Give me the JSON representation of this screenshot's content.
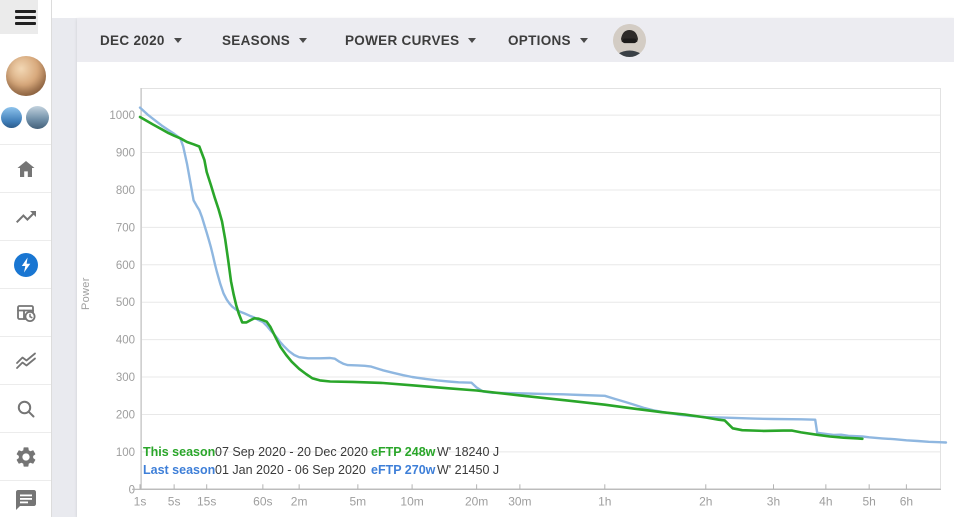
{
  "colors": {
    "this_season_green": "#2aa62a",
    "last_season_line_blue": "#8fb7e0",
    "last_season_text_blue": "#3e7fd8",
    "flash_accent_blue": "#1976d2",
    "toolbar_bg": "#ececf1",
    "axis_text_gray": "#9e9e9e"
  },
  "sidebar": {
    "icons": [
      "hamburger-menu",
      "home",
      "trending-up",
      "power-flash-active",
      "year-progress-table-clock",
      "multi-lines-chart",
      "search",
      "settings",
      "feedback-chat"
    ]
  },
  "toolbar": {
    "menus": [
      {
        "label": "DEC 2020"
      },
      {
        "label": "SEASONS"
      },
      {
        "label": "POWER CURVES"
      },
      {
        "label": "OPTIONS"
      }
    ]
  },
  "legend": {
    "rows": [
      {
        "label": "This season",
        "dates": "07 Sep 2020 - 20 Dec 2020",
        "eftp": "eFTP 248w",
        "wprime": "W' 18240 J",
        "color": "#2aa62a"
      },
      {
        "label": "Last season",
        "dates": "01 Jan 2020 - 06 Sep 2020",
        "eftp": "eFTP 270w",
        "wprime": "W' 21450 J",
        "color": "#3e7fd8"
      }
    ]
  },
  "chart_data": {
    "type": "line",
    "title": "",
    "xlabel": "",
    "ylabel": "Power",
    "x_scale": "fourth-root-of-seconds",
    "ylim": [
      0,
      1050
    ],
    "grid": "horizontal",
    "legend_position": "bottom-left",
    "y_ticks": [
      0,
      100,
      200,
      300,
      400,
      500,
      600,
      700,
      800,
      900,
      1000
    ],
    "x_ticks": [
      {
        "t": 1,
        "label": "1s"
      },
      {
        "t": 5,
        "label": "5s"
      },
      {
        "t": 15,
        "label": "15s"
      },
      {
        "t": 60,
        "label": "60s"
      },
      {
        "t": 120,
        "label": "2m"
      },
      {
        "t": 300,
        "label": "5m"
      },
      {
        "t": 600,
        "label": "10m"
      },
      {
        "t": 1200,
        "label": "20m"
      },
      {
        "t": 1800,
        "label": "30m"
      },
      {
        "t": 3600,
        "label": "1h"
      },
      {
        "t": 7200,
        "label": "2h"
      },
      {
        "t": 10800,
        "label": "3h"
      },
      {
        "t": 14400,
        "label": "4h"
      },
      {
        "t": 18000,
        "label": "5h"
      },
      {
        "t": 21600,
        "label": "6h"
      }
    ],
    "series": [
      {
        "name": "Last season",
        "color": "#8fb7e0",
        "width": 2.4,
        "points": [
          [
            1,
            1020
          ],
          [
            1.5,
            1002
          ],
          [
            2,
            990
          ],
          [
            3,
            972
          ],
          [
            4,
            960
          ],
          [
            5,
            950
          ],
          [
            6.3,
            938
          ],
          [
            7,
            916
          ],
          [
            8,
            870
          ],
          [
            9,
            820
          ],
          [
            10,
            772
          ],
          [
            11,
            758
          ],
          [
            12,
            746
          ],
          [
            13,
            728
          ],
          [
            14,
            706
          ],
          [
            15,
            686
          ],
          [
            16,
            666
          ],
          [
            17,
            646
          ],
          [
            18,
            624
          ],
          [
            19,
            602
          ],
          [
            20,
            582
          ],
          [
            22,
            549
          ],
          [
            24,
            523
          ],
          [
            26,
            507
          ],
          [
            28,
            496
          ],
          [
            30,
            488
          ],
          [
            33,
            480
          ],
          [
            36,
            475
          ],
          [
            40,
            470
          ],
          [
            45,
            464
          ],
          [
            50,
            459
          ],
          [
            55,
            452
          ],
          [
            60,
            447
          ],
          [
            65,
            437
          ],
          [
            70,
            425
          ],
          [
            75,
            415
          ],
          [
            80,
            404
          ],
          [
            85,
            393
          ],
          [
            90,
            384
          ],
          [
            100,
            369
          ],
          [
            110,
            359
          ],
          [
            120,
            353
          ],
          [
            140,
            350
          ],
          [
            170,
            350
          ],
          [
            200,
            351
          ],
          [
            215,
            349
          ],
          [
            230,
            341
          ],
          [
            245,
            335
          ],
          [
            260,
            332
          ],
          [
            300,
            331
          ],
          [
            330,
            330
          ],
          [
            360,
            328
          ],
          [
            420,
            318
          ],
          [
            480,
            311
          ],
          [
            540,
            305
          ],
          [
            600,
            300
          ],
          [
            700,
            295
          ],
          [
            800,
            291
          ],
          [
            900,
            288
          ],
          [
            1000,
            286
          ],
          [
            1140,
            285
          ],
          [
            1200,
            272
          ],
          [
            1280,
            261
          ],
          [
            1400,
            258
          ],
          [
            1600,
            257
          ],
          [
            1900,
            256
          ],
          [
            2200,
            255
          ],
          [
            2600,
            254
          ],
          [
            3000,
            252
          ],
          [
            3600,
            250
          ],
          [
            3900,
            241
          ],
          [
            4200,
            233
          ],
          [
            4500,
            225
          ],
          [
            4800,
            217
          ],
          [
            5100,
            211
          ],
          [
            5400,
            207
          ],
          [
            6000,
            200
          ],
          [
            6600,
            196
          ],
          [
            7200,
            193
          ],
          [
            8400,
            191
          ],
          [
            9600,
            189
          ],
          [
            10800,
            188
          ],
          [
            12600,
            187
          ],
          [
            13600,
            186
          ],
          [
            13750,
            151
          ],
          [
            14400,
            148
          ],
          [
            15000,
            145
          ],
          [
            15600,
            146
          ],
          [
            16200,
            143
          ],
          [
            17400,
            141
          ],
          [
            18000,
            139
          ],
          [
            19200,
            136
          ],
          [
            20400,
            134
          ],
          [
            21600,
            131
          ],
          [
            22800,
            129
          ],
          [
            24000,
            127
          ],
          [
            25200,
            126
          ],
          [
            26000,
            125
          ]
        ]
      },
      {
        "name": "This season",
        "color": "#2aa62a",
        "width": 2.6,
        "points": [
          [
            1,
            995
          ],
          [
            2,
            975
          ],
          [
            3,
            962
          ],
          [
            4,
            952
          ],
          [
            5,
            945
          ],
          [
            6.3,
            938
          ],
          [
            8,
            928
          ],
          [
            10,
            922
          ],
          [
            12,
            916
          ],
          [
            14,
            880
          ],
          [
            15,
            848
          ],
          [
            17,
            812
          ],
          [
            19,
            778
          ],
          [
            21,
            748
          ],
          [
            23,
            716
          ],
          [
            25,
            668
          ],
          [
            27,
            612
          ],
          [
            29,
            556
          ],
          [
            31,
            520
          ],
          [
            33,
            492
          ],
          [
            35,
            470
          ],
          [
            38,
            446
          ],
          [
            42,
            446
          ],
          [
            46,
            452
          ],
          [
            50,
            457
          ],
          [
            55,
            456
          ],
          [
            60,
            452
          ],
          [
            65,
            448
          ],
          [
            70,
            434
          ],
          [
            78,
            404
          ],
          [
            85,
            381
          ],
          [
            95,
            359
          ],
          [
            105,
            341
          ],
          [
            120,
            322
          ],
          [
            135,
            308
          ],
          [
            150,
            297
          ],
          [
            170,
            291
          ],
          [
            200,
            288
          ],
          [
            280,
            287
          ],
          [
            420,
            284
          ],
          [
            600,
            278
          ],
          [
            900,
            270
          ],
          [
            1200,
            264
          ],
          [
            1800,
            251
          ],
          [
            2700,
            237
          ],
          [
            3600,
            226
          ],
          [
            4500,
            215
          ],
          [
            5400,
            206
          ],
          [
            6300,
            200
          ],
          [
            7200,
            192
          ],
          [
            7800,
            186
          ],
          [
            8100,
            184
          ],
          [
            8500,
            163
          ],
          [
            9000,
            158
          ],
          [
            10200,
            156
          ],
          [
            11400,
            157
          ],
          [
            12000,
            157
          ],
          [
            12600,
            152
          ],
          [
            13700,
            146
          ],
          [
            14700,
            141
          ],
          [
            15800,
            138
          ],
          [
            17000,
            136
          ],
          [
            17400,
            135
          ]
        ]
      }
    ]
  }
}
